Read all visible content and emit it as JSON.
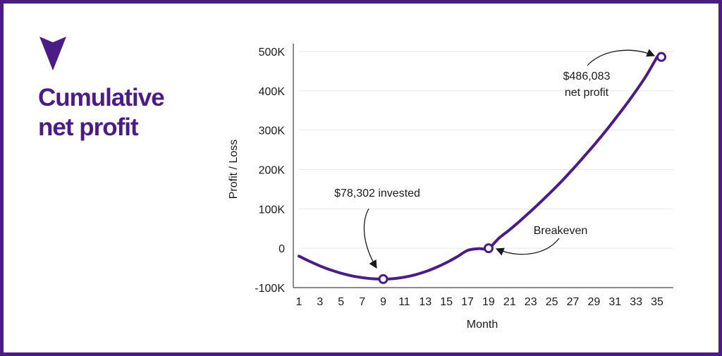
{
  "title": {
    "line1": "Cumulative",
    "line2": "net profit"
  },
  "colors": {
    "brand": "#4b1c84",
    "grid": "#e6e6e6",
    "text": "#1a1a1a"
  },
  "icons": {
    "logo": "triangle-down-icon"
  },
  "chart_data": {
    "type": "line",
    "xlabel": "Month",
    "ylabel": "Profit / Loss",
    "xlim": [
      1,
      35
    ],
    "ylim": [
      -100000,
      500000
    ],
    "x_ticks": [
      1,
      3,
      5,
      7,
      9,
      11,
      13,
      15,
      17,
      19,
      21,
      23,
      25,
      27,
      29,
      31,
      33,
      35
    ],
    "x_tick_labels": [
      "1",
      "3",
      "5",
      "7",
      "9",
      "11",
      "13",
      "15",
      "17",
      "19",
      "21",
      "23",
      "25",
      "27",
      "29",
      "31",
      "33",
      "35"
    ],
    "y_ticks": [
      -100000,
      0,
      100000,
      200000,
      300000,
      400000,
      500000
    ],
    "y_tick_labels": [
      "-100K",
      "0",
      "100K",
      "200K",
      "300K",
      "400K",
      "500K"
    ],
    "grid": true,
    "series": [
      {
        "x": [
          1,
          2,
          3,
          4,
          5,
          6,
          7,
          8,
          9,
          10,
          11,
          12,
          13,
          14,
          15,
          16,
          17,
          18,
          19,
          20,
          21,
          22,
          23,
          24,
          25,
          26,
          27,
          28,
          29,
          30,
          31,
          32,
          33,
          34,
          35
        ],
        "y": [
          -20000,
          -33000,
          -45000,
          -55000,
          -63500,
          -70000,
          -74500,
          -77500,
          -78302,
          -77000,
          -73500,
          -67500,
          -59500,
          -49000,
          -36500,
          -22000,
          -5500,
          -1000,
          0,
          26000,
          47000,
          70000,
          94000,
          119000,
          145000,
          172000,
          201000,
          231000,
          262000,
          294000,
          328000,
          363000,
          400000,
          440000,
          486083
        ]
      }
    ],
    "markers": [
      {
        "x": 9,
        "y": -78302
      },
      {
        "x": 19,
        "y": 0
      },
      {
        "x": 35.4,
        "y": 486083
      }
    ],
    "annotations": [
      {
        "lines": [
          "$78,302 invested"
        ],
        "target": "marker-0"
      },
      {
        "lines": [
          "Breakeven"
        ],
        "target": "marker-1"
      },
      {
        "lines": [
          "$486,083",
          "net profit"
        ],
        "target": "marker-2"
      }
    ]
  }
}
